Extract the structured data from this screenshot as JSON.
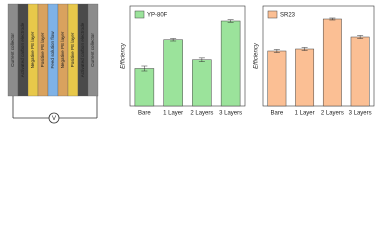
{
  "diagram": {
    "layers": [
      "Current collector",
      "Activated carbon electrode",
      "Negative PE layer",
      "Positive PE layer",
      "Feed solution flow",
      "Negative PE layer",
      "Positive PE layer",
      "Activated carbon electrode",
      "Current collector"
    ],
    "meter": "V"
  },
  "chart_data": [
    {
      "type": "bar",
      "y_label": "Efficiency",
      "categories": [
        "Bare",
        "1 Layer",
        "2 Layers",
        "3 Layers"
      ],
      "series": [
        {
          "name": "YP-80F",
          "color": "#9be39b",
          "values": [
            0.3,
            0.53,
            0.37,
            0.68
          ],
          "errors": [
            0.02,
            0.01,
            0.015,
            0.01
          ]
        }
      ],
      "ylim": [
        0,
        0.8
      ],
      "legend": "top-left"
    },
    {
      "type": "bar",
      "y_label": "Efficiency",
      "categories": [
        "Bare",
        "1 Layer",
        "2 Layers",
        "3 Layers"
      ],
      "series": [
        {
          "name": "SR23",
          "color": "#fbbf94",
          "values": [
            0.55,
            0.57,
            0.87,
            0.69
          ],
          "errors": [
            0.015,
            0.015,
            0.01,
            0.015
          ]
        }
      ],
      "ylim": [
        0,
        1.0
      ],
      "legend": "top-left"
    }
  ]
}
